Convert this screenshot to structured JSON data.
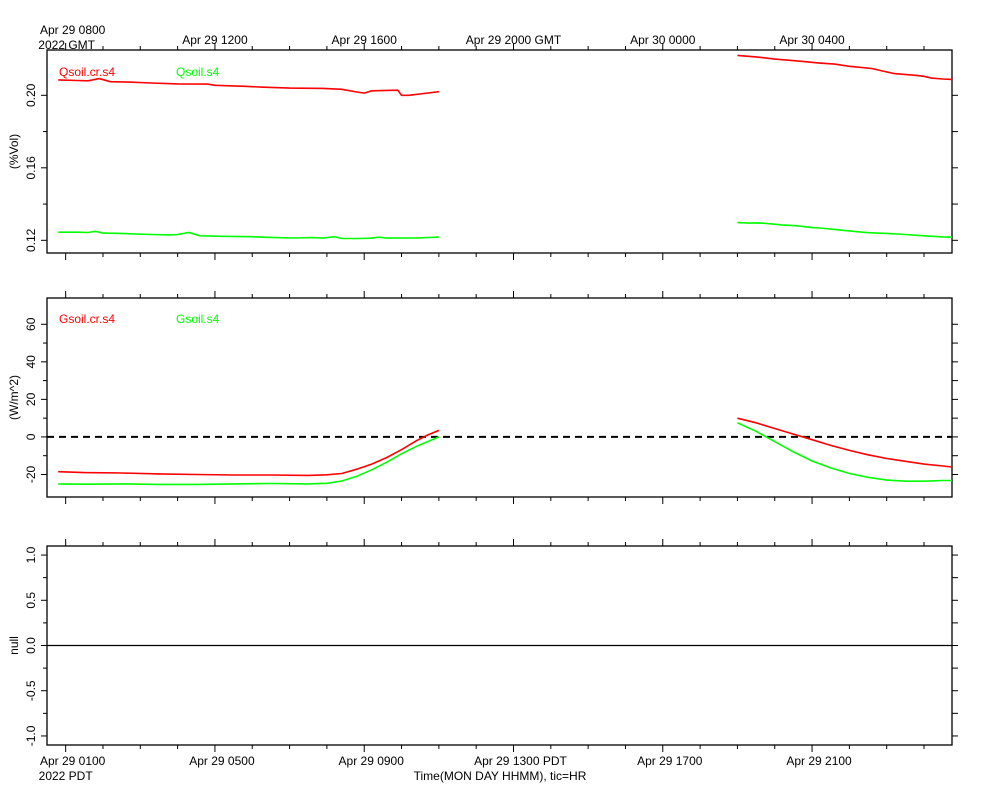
{
  "colors": {
    "cr": "#ff0000",
    "green": "#00ff00",
    "axis": "#000000"
  },
  "chart_data": [
    {
      "type": "line",
      "panel": "top",
      "ylabel": "(%Vol)",
      "yticks": [
        "0.12",
        "0.16",
        "0.20"
      ],
      "ylim": [
        0.113,
        0.225
      ],
      "x_hours_range": [
        -0.5,
        23.75
      ],
      "series": [
        {
          "name": "Qsoil.cr.s4",
          "color": "#ff0000",
          "segments": [
            [
              [
                -0.2,
                0.2085
              ],
              [
                0.3,
                0.2082
              ],
              [
                0.6,
                0.208
              ],
              [
                0.9,
                0.2092
              ],
              [
                1.2,
                0.2075
              ],
              [
                1.7,
                0.2073
              ],
              [
                2.3,
                0.2068
              ],
              [
                3.0,
                0.2063
              ],
              [
                3.8,
                0.2062
              ],
              [
                4.0,
                0.2055
              ],
              [
                4.8,
                0.205
              ],
              [
                5.3,
                0.2045
              ],
              [
                6.0,
                0.204
              ],
              [
                6.9,
                0.2038
              ],
              [
                7.4,
                0.2033
              ],
              [
                7.8,
                0.2018
              ],
              [
                8.0,
                0.2012
              ],
              [
                8.2,
                0.2025
              ],
              [
                8.9,
                0.2028
              ],
              [
                9.0,
                0.2
              ],
              [
                9.2,
                0.2
              ],
              [
                9.6,
                0.201
              ],
              [
                10.0,
                0.202
              ]
            ],
            [
              [
                18.0,
                0.222
              ],
              [
                18.5,
                0.2212
              ],
              [
                19.0,
                0.22
              ],
              [
                19.6,
                0.219
              ],
              [
                20.2,
                0.2178
              ],
              [
                20.6,
                0.2172
              ],
              [
                21.0,
                0.216
              ],
              [
                21.6,
                0.2148
              ],
              [
                22.2,
                0.212
              ],
              [
                22.8,
                0.211
              ],
              [
                23.0,
                0.2105
              ],
              [
                23.2,
                0.2095
              ],
              [
                23.5,
                0.209
              ],
              [
                23.75,
                0.2088
              ]
            ]
          ]
        },
        {
          "name": "Qsoil.s4",
          "color": "#00ff00",
          "segments": [
            [
              [
                -0.2,
                0.1245
              ],
              [
                0.3,
                0.1245
              ],
              [
                0.6,
                0.1243
              ],
              [
                0.8,
                0.125
              ],
              [
                1.0,
                0.124
              ],
              [
                1.6,
                0.1237
              ],
              [
                2.3,
                0.1232
              ],
              [
                2.8,
                0.123
              ],
              [
                3.0,
                0.1232
              ],
              [
                3.3,
                0.1243
              ],
              [
                3.6,
                0.1225
              ],
              [
                4.2,
                0.1222
              ],
              [
                5.0,
                0.122
              ],
              [
                5.6,
                0.1215
              ],
              [
                6.1,
                0.1213
              ],
              [
                6.6,
                0.1215
              ],
              [
                6.9,
                0.1212
              ],
              [
                7.2,
                0.122
              ],
              [
                7.4,
                0.121
              ],
              [
                7.9,
                0.121
              ],
              [
                8.2,
                0.1212
              ],
              [
                8.4,
                0.1217
              ],
              [
                8.6,
                0.1212
              ],
              [
                9.4,
                0.1213
              ],
              [
                10.0,
                0.1218
              ]
            ],
            [
              [
                18.0,
                0.1298
              ],
              [
                18.3,
                0.1295
              ],
              [
                18.6,
                0.1296
              ],
              [
                19.2,
                0.1285
              ],
              [
                19.6,
                0.128
              ],
              [
                20.0,
                0.127
              ],
              [
                20.2,
                0.1268
              ],
              [
                20.6,
                0.126
              ],
              [
                21.0,
                0.1252
              ],
              [
                21.5,
                0.1242
              ],
              [
                22.0,
                0.1238
              ],
              [
                22.5,
                0.1232
              ],
              [
                23.0,
                0.1225
              ],
              [
                23.5,
                0.1219
              ],
              [
                23.75,
                0.1217
              ]
            ]
          ]
        }
      ]
    },
    {
      "type": "line",
      "panel": "middle",
      "ylabel": "(W/m^2)",
      "yticks": [
        "-20",
        "0",
        "20",
        "40",
        "60"
      ],
      "ylim": [
        -32,
        74
      ],
      "x_hours_range": [
        -0.5,
        23.75
      ],
      "reference_line": 0,
      "series": [
        {
          "name": "Gsoil.cr.s4",
          "color": "#ff0000",
          "segments": [
            [
              [
                -0.2,
                -18.5
              ],
              [
                0.5,
                -19.0
              ],
              [
                1.5,
                -19.2
              ],
              [
                2.5,
                -19.7
              ],
              [
                3.5,
                -20.0
              ],
              [
                4.5,
                -20.3
              ],
              [
                5.5,
                -20.3
              ],
              [
                6.5,
                -20.5
              ],
              [
                7.0,
                -20.2
              ],
              [
                7.4,
                -19.5
              ],
              [
                7.8,
                -17.2
              ],
              [
                8.2,
                -14.5
              ],
              [
                8.6,
                -11.0
              ],
              [
                9.0,
                -6.8
              ],
              [
                9.4,
                -2.0
              ],
              [
                9.7,
                1.0
              ],
              [
                10.0,
                3.5
              ]
            ],
            [
              [
                18.0,
                10.0
              ],
              [
                18.5,
                7.5
              ],
              [
                19.0,
                4.5
              ],
              [
                19.5,
                1.5
              ],
              [
                20.0,
                -1.5
              ],
              [
                20.5,
                -4.5
              ],
              [
                21.0,
                -7.2
              ],
              [
                21.5,
                -9.5
              ],
              [
                22.0,
                -11.5
              ],
              [
                22.5,
                -13.0
              ],
              [
                23.0,
                -14.5
              ],
              [
                23.5,
                -15.5
              ],
              [
                23.75,
                -16.0
              ]
            ]
          ]
        },
        {
          "name": "Gsoil.s4",
          "color": "#00ff00",
          "segments": [
            [
              [
                -0.2,
                -25.0
              ],
              [
                0.5,
                -25.2
              ],
              [
                1.5,
                -25.0
              ],
              [
                2.5,
                -25.3
              ],
              [
                3.5,
                -25.3
              ],
              [
                4.5,
                -25.0
              ],
              [
                5.5,
                -24.8
              ],
              [
                6.5,
                -25.0
              ],
              [
                7.0,
                -24.7
              ],
              [
                7.4,
                -23.5
              ],
              [
                7.8,
                -21.0
              ],
              [
                8.2,
                -17.5
              ],
              [
                8.6,
                -13.5
              ],
              [
                9.0,
                -9.0
              ],
              [
                9.4,
                -5.0
              ],
              [
                9.7,
                -2.5
              ],
              [
                10.0,
                0.0
              ]
            ],
            [
              [
                18.0,
                7.5
              ],
              [
                18.5,
                3.0
              ],
              [
                19.0,
                -2.5
              ],
              [
                19.5,
                -8.0
              ],
              [
                20.0,
                -12.8
              ],
              [
                20.5,
                -16.5
              ],
              [
                21.0,
                -19.5
              ],
              [
                21.5,
                -21.5
              ],
              [
                22.0,
                -23.0
              ],
              [
                22.5,
                -23.6
              ],
              [
                23.0,
                -23.6
              ],
              [
                23.5,
                -23.2
              ],
              [
                23.75,
                -23.2
              ]
            ]
          ]
        }
      ]
    },
    {
      "type": "line",
      "panel": "bottom",
      "ylabel": "null",
      "yticks": [
        "-1.0",
        "-0.5",
        "0.0",
        "0.5",
        "1.0"
      ],
      "ylim": [
        -1.1,
        1.1
      ],
      "x_hours_range": [
        -0.5,
        23.75
      ],
      "reference_line": 0,
      "series": []
    }
  ],
  "x_axis": {
    "top_labels": [
      {
        "hour": 0,
        "line1": "Apr 29 0800",
        "line2": "2022 GMT"
      },
      {
        "hour": 4,
        "line1": "Apr 29 1200",
        "line2": ""
      },
      {
        "hour": 8,
        "line1": "Apr 29 1600",
        "line2": ""
      },
      {
        "hour": 12,
        "line1": "Apr 29 2000 GMT",
        "line2": ""
      },
      {
        "hour": 16,
        "line1": "Apr 30 0000",
        "line2": ""
      },
      {
        "hour": 20,
        "line1": "Apr 30 0400",
        "line2": ""
      }
    ],
    "bottom_labels": [
      {
        "hour": 0,
        "line1": "Apr 29 0100",
        "line2": "2022 PDT"
      },
      {
        "hour": 4,
        "line1": "Apr 29 0500",
        "line2": ""
      },
      {
        "hour": 8,
        "line1": "Apr 29 0900",
        "line2": ""
      },
      {
        "hour": 12,
        "line1": "Apr 29 1300 PDT",
        "line2": ""
      },
      {
        "hour": 16,
        "line1": "Apr 29 1700",
        "line2": ""
      },
      {
        "hour": 20,
        "line1": "Apr 29 2100",
        "line2": ""
      }
    ],
    "title": "Time(MON DAY HHMM), tic=HR"
  }
}
